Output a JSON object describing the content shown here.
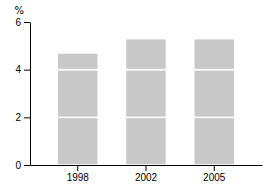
{
  "chart_data": {
    "type": "bar",
    "stacked": true,
    "ylabel": "%",
    "categories": [
      "1998",
      "2002",
      "2005"
    ],
    "series": [
      {
        "values": [
          2.0,
          2.0,
          2.0
        ]
      },
      {
        "values": [
          2.0,
          2.0,
          2.0
        ]
      },
      {
        "values": [
          0.7,
          1.3,
          1.3
        ]
      }
    ],
    "color": "#c8c8c8",
    "ylim": [
      0,
      6
    ],
    "yticks": [
      0,
      2,
      4,
      6
    ],
    "grid": false
  }
}
